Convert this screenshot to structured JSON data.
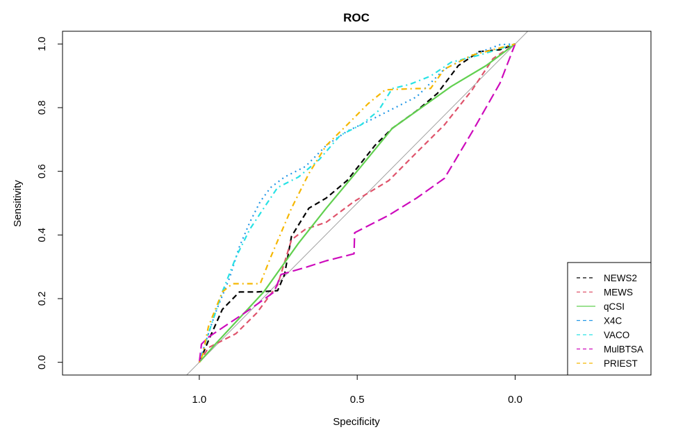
{
  "chart_data": {
    "type": "line",
    "title": "ROC",
    "xlabel": "Specificity",
    "ylabel": "Sensitivity",
    "xlim": [
      1.433,
      -0.43
    ],
    "ylim": [
      -0.04,
      1.04
    ],
    "x_ticks": [
      1.0,
      0.5,
      0.0
    ],
    "x_tick_labels": [
      "1.0",
      "0.5",
      "0.0"
    ],
    "y_ticks": [
      0.0,
      0.2,
      0.4,
      0.6,
      0.8,
      1.0
    ],
    "y_tick_labels": [
      "0.0",
      "0.2",
      "0.4",
      "0.6",
      "0.8",
      "1.0"
    ],
    "x_axis_reversed": true,
    "grid": false,
    "legend_position": "bottom-right",
    "reference_line": {
      "color": "#A0A0A0",
      "description": "specificity + sensitivity = 1"
    },
    "series": [
      {
        "name": "NEWS2",
        "color": "#000000",
        "dash": "dashed",
        "x": [
          1,
          0.971,
          0.927,
          0.873,
          0.818,
          0.752,
          0.73,
          0.708,
          0.653,
          0.598,
          0.532,
          0.488,
          0.444,
          0.389,
          0.312,
          0.246,
          0.18,
          0.114,
          0.048,
          0
        ],
        "y": [
          0,
          0.068,
          0.166,
          0.221,
          0.221,
          0.225,
          0.276,
          0.396,
          0.484,
          0.516,
          0.571,
          0.626,
          0.681,
          0.735,
          0.79,
          0.845,
          0.932,
          0.976,
          0.982,
          1
        ]
      },
      {
        "name": "MEWS",
        "color": "#DF536B",
        "dash": "dashed",
        "x": [
          1,
          0.971,
          0.884,
          0.818,
          0.752,
          0.708,
          0.664,
          0.598,
          0.51,
          0.4,
          0.312,
          0.224,
          0.136,
          0.07,
          0
        ],
        "y": [
          0,
          0.046,
          0.09,
          0.155,
          0.243,
          0.385,
          0.418,
          0.44,
          0.505,
          0.571,
          0.659,
          0.746,
          0.856,
          0.954,
          1
        ]
      },
      {
        "name": "qCSI",
        "color": "#61D04F",
        "dash": "solid",
        "x": [
          1,
          0.949,
          0.796,
          0.686,
          0.598,
          0.488,
          0.389,
          0.202,
          0.092,
          0
        ],
        "y": [
          0,
          0.057,
          0.221,
          0.374,
          0.484,
          0.615,
          0.735,
          0.867,
          0.932,
          1
        ]
      },
      {
        "name": "X4C",
        "color": "#2297E6",
        "dash": "dotted",
        "x": [
          1,
          0.982,
          0.949,
          0.905,
          0.873,
          0.84,
          0.807,
          0.774,
          0.73,
          0.664,
          0.598,
          0.532,
          0.466,
          0.4,
          0.312,
          0.224,
          0.136,
          0.048,
          0
        ],
        "y": [
          0,
          0.057,
          0.155,
          0.263,
          0.363,
          0.44,
          0.505,
          0.549,
          0.582,
          0.615,
          0.681,
          0.726,
          0.757,
          0.79,
          0.834,
          0.921,
          0.965,
          0.998,
          1
        ]
      },
      {
        "name": "VACO",
        "color": "#28E2E5",
        "dash": "dotdash",
        "x": [
          1,
          0.971,
          0.927,
          0.884,
          0.84,
          0.796,
          0.752,
          0.686,
          0.62,
          0.554,
          0.488,
          0.433,
          0.389,
          0.334,
          0.268,
          0.202,
          0.114,
          0
        ],
        "y": [
          0,
          0.09,
          0.221,
          0.33,
          0.418,
          0.484,
          0.549,
          0.582,
          0.637,
          0.713,
          0.746,
          0.79,
          0.86,
          0.873,
          0.899,
          0.943,
          0.965,
          1
        ]
      },
      {
        "name": "MulBTSA",
        "color": "#CD0BBC",
        "dash": "longdash",
        "x": [
          1,
          0.993,
          0.971,
          0.905,
          0.84,
          0.763,
          0.741,
          0.664,
          0.598,
          0.51,
          0.508,
          0.4,
          0.312,
          0.224,
          0.136,
          0.048,
          0
        ],
        "y": [
          0,
          0.057,
          0.079,
          0.123,
          0.166,
          0.221,
          0.276,
          0.298,
          0.319,
          0.341,
          0.407,
          0.462,
          0.516,
          0.578,
          0.724,
          0.877,
          1
        ]
      },
      {
        "name": "PRIEST",
        "color": "#F5B700",
        "dash": "dotdash",
        "x": [
          1,
          0.989,
          0.971,
          0.927,
          0.895,
          0.807,
          0.774,
          0.708,
          0.653,
          0.598,
          0.532,
          0.466,
          0.411,
          0.312,
          0.268,
          0.224,
          0.136,
          0
        ],
        "y": [
          0,
          0.024,
          0.112,
          0.221,
          0.247,
          0.247,
          0.33,
          0.484,
          0.593,
          0.681,
          0.746,
          0.812,
          0.856,
          0.86,
          0.86,
          0.921,
          0.965,
          1
        ]
      }
    ]
  }
}
